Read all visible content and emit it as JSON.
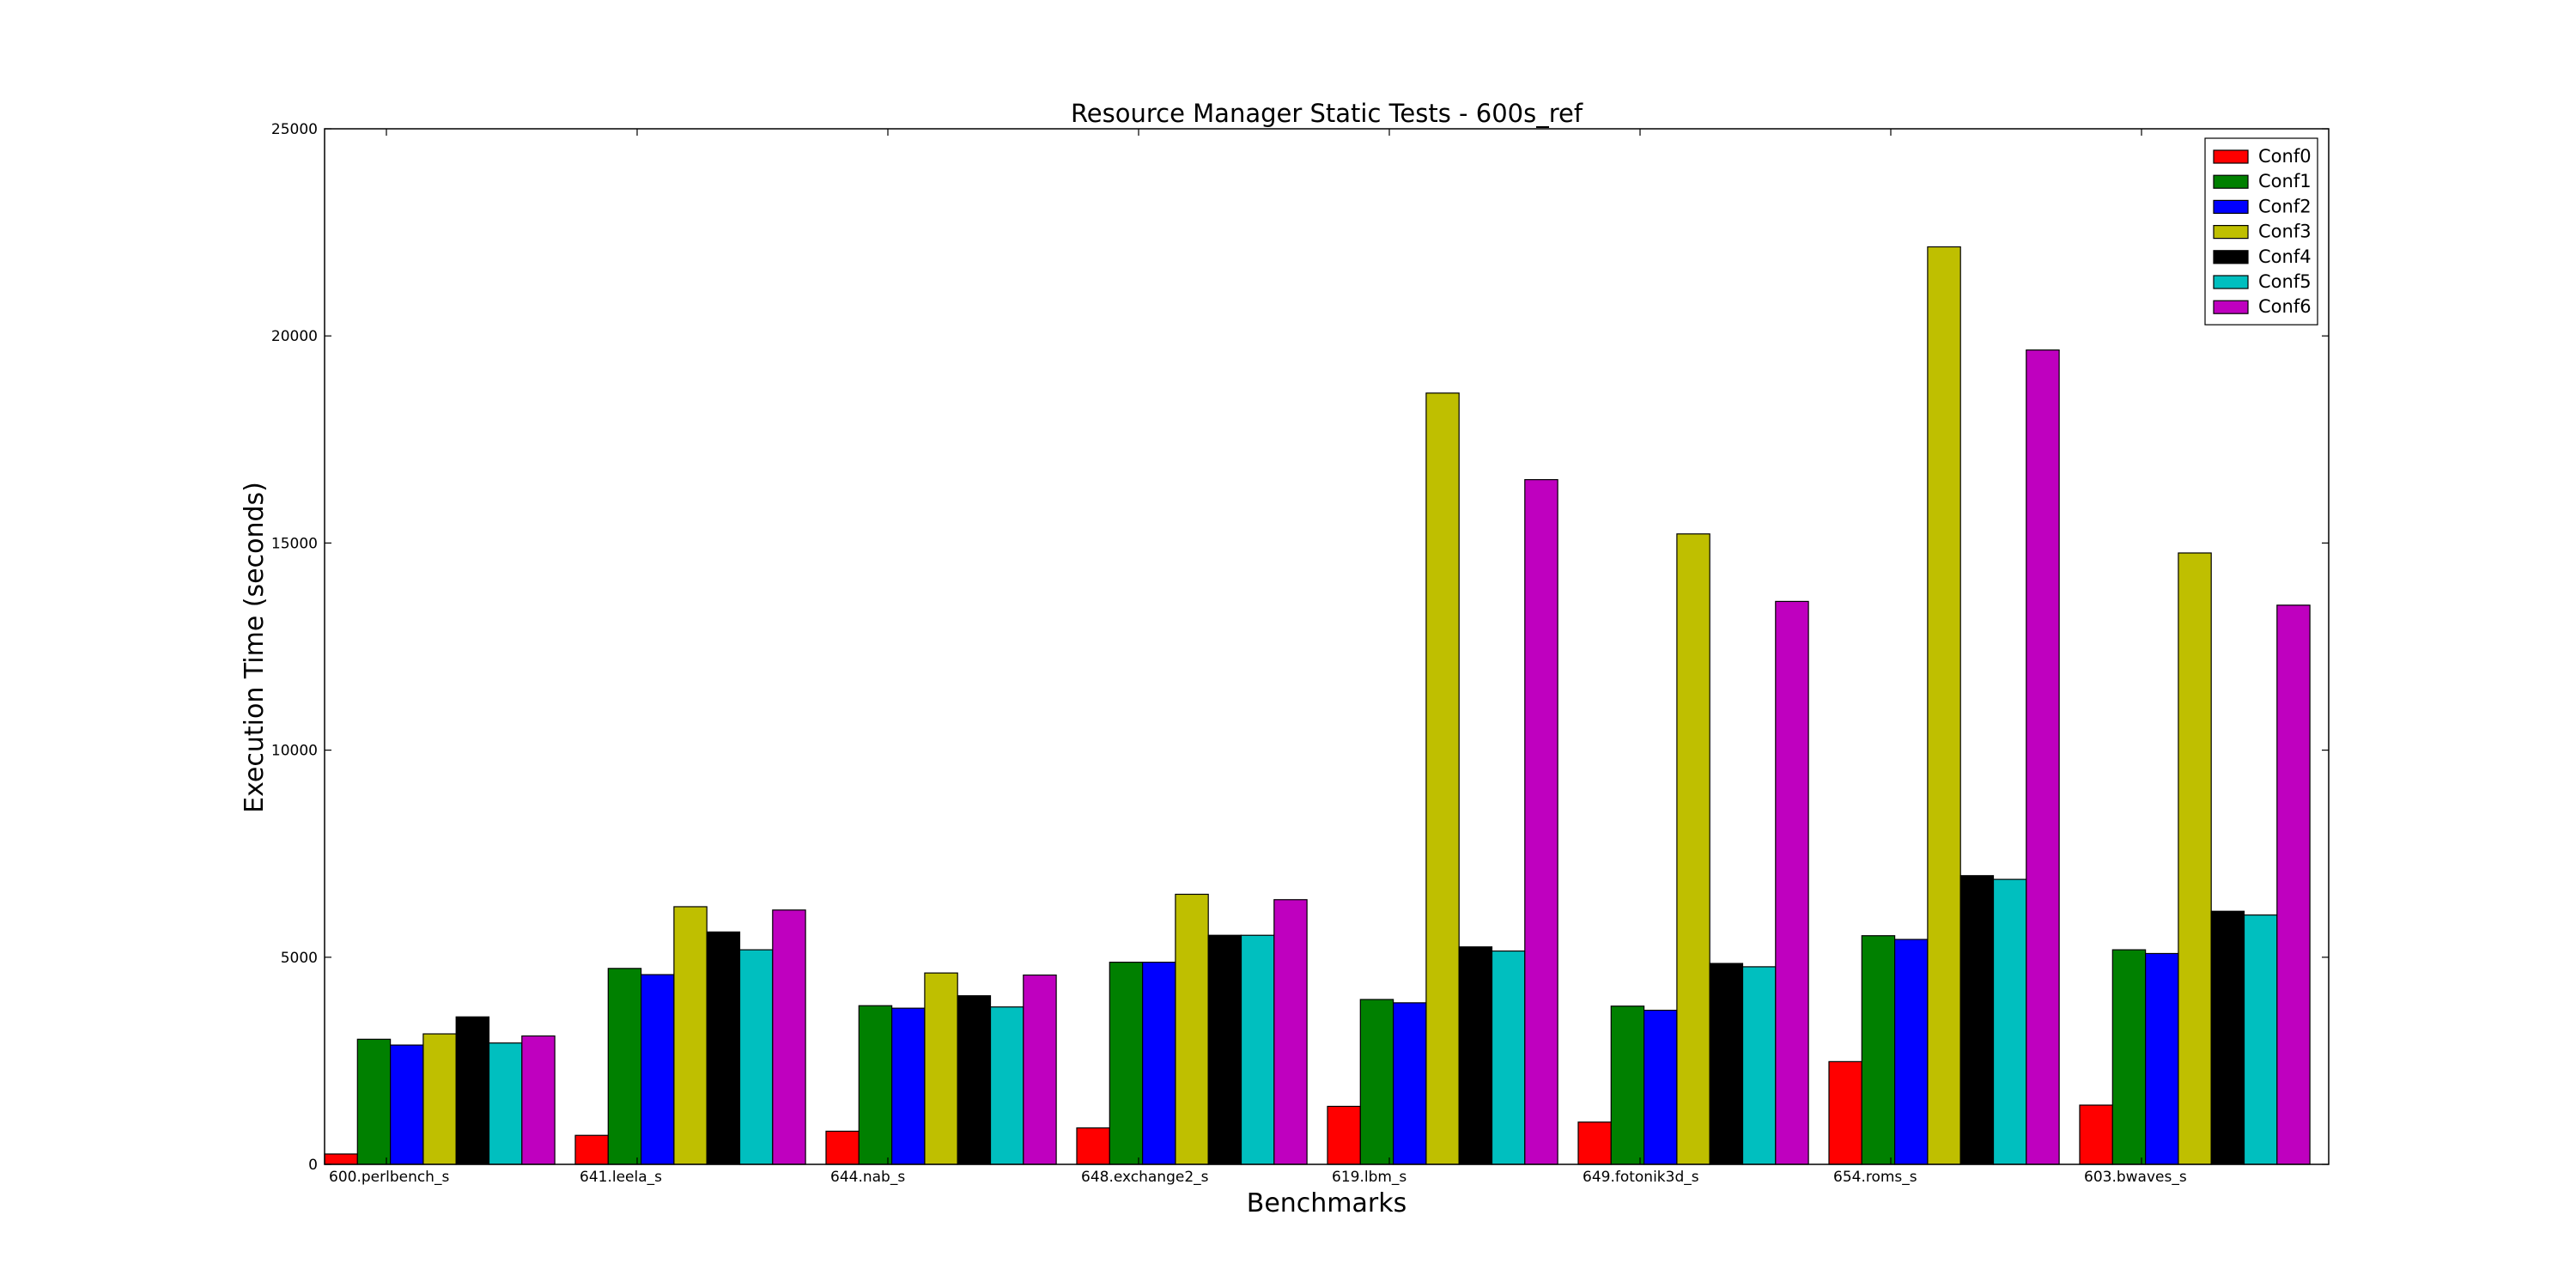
{
  "chart_data": {
    "type": "bar",
    "title": "Resource Manager Static Tests - 600s_ref",
    "xlabel": "Benchmarks",
    "ylabel": "Execution Time (seconds)",
    "ylim": [
      0,
      25000
    ],
    "yticks": [
      0,
      5000,
      10000,
      15000,
      20000,
      25000
    ],
    "grid": false,
    "legend_position": "top-right",
    "categories": [
      "600.perlbench_s",
      "641.leela_s",
      "644.nab_s",
      "648.exchange2_s",
      "619.lbm_s",
      "649.fotonik3d_s",
      "654.roms_s",
      "603.bwaves_s"
    ],
    "series": [
      {
        "name": "Conf0",
        "color": "#ff0000",
        "values": [
          250,
          700,
          800,
          880,
          1400,
          1020,
          2480,
          1430
        ]
      },
      {
        "name": "Conf1",
        "color": "#008000",
        "values": [
          3020,
          4730,
          3830,
          4880,
          3980,
          3820,
          5520,
          5180
        ]
      },
      {
        "name": "Conf2",
        "color": "#0000ff",
        "values": [
          2880,
          4580,
          3770,
          4880,
          3900,
          3720,
          5430,
          5090
        ]
      },
      {
        "name": "Conf3",
        "color": "#bfbf00",
        "values": [
          3150,
          6220,
          4620,
          6520,
          18620,
          15220,
          22150,
          14760
        ]
      },
      {
        "name": "Conf4",
        "color": "#000000",
        "values": [
          3560,
          5610,
          4070,
          5530,
          5250,
          4850,
          6970,
          6110
        ]
      },
      {
        "name": "Conf5",
        "color": "#00bfbf",
        "values": [
          2930,
          5180,
          3800,
          5530,
          5150,
          4770,
          6880,
          6020
        ]
      },
      {
        "name": "Conf6",
        "color": "#bf00bf",
        "values": [
          3100,
          6140,
          4570,
          6390,
          16530,
          13590,
          19660,
          13500
        ]
      }
    ]
  }
}
